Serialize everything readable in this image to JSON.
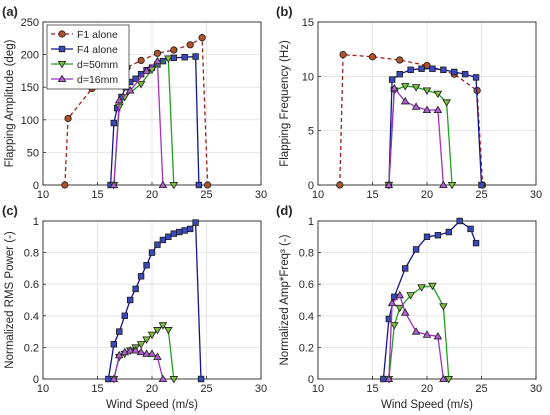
{
  "chart_data": [
    {
      "panel_label": "(a)",
      "type": "line",
      "ylabel": "Flapping Amplitude (deg)",
      "xlabel": "",
      "xlim": [
        10,
        30
      ],
      "ylim": [
        0,
        250
      ],
      "xticks": [
        10,
        15,
        20,
        25,
        30
      ],
      "yticks": [
        0,
        50,
        100,
        150,
        200,
        250
      ],
      "grid": true,
      "legend": {
        "position": "top-left",
        "entries": [
          "F1 alone",
          "F4 alone",
          "d=50mm",
          "d=16mm"
        ]
      },
      "series": [
        {
          "name": "F1 alone",
          "style": "dashed",
          "color": "#a02020",
          "marker": "circle",
          "marker_fill": "#b0522a",
          "x": [
            12,
            12.3,
            14.5,
            16.5,
            17.7,
            19,
            20.5,
            22,
            23.5,
            24.6,
            25.1
          ],
          "y": [
            0,
            102,
            148,
            168,
            180,
            191,
            202,
            207,
            215,
            226,
            0
          ]
        },
        {
          "name": "F4 alone",
          "style": "solid",
          "color": "#14148c",
          "marker": "square",
          "marker_fill": "#3a48b8",
          "x": [
            16.2,
            16.5,
            16.8,
            17.2,
            17.6,
            18,
            18.5,
            19,
            19.5,
            20,
            20.5,
            21,
            22,
            23,
            24,
            24.3
          ],
          "y": [
            0,
            95,
            118,
            135,
            150,
            158,
            163,
            170,
            176,
            180,
            185,
            190,
            195,
            196,
            197,
            0
          ]
        },
        {
          "name": "d=50mm",
          "style": "solid",
          "color": "#20a020",
          "marker": "triangle-down",
          "marker_fill": "#7fbf3f",
          "x": [
            16.5,
            17,
            17.5,
            19,
            20,
            21.5,
            22
          ],
          "y": [
            0,
            120,
            135,
            155,
            177,
            194,
            0
          ]
        },
        {
          "name": "d=16mm",
          "style": "solid",
          "color": "#a030c0",
          "marker": "triangle-up",
          "marker_fill": "#b060d0",
          "x": [
            16.5,
            17,
            18,
            19.5,
            20.5,
            21
          ],
          "y": [
            0,
            130,
            145,
            175,
            190,
            0
          ]
        }
      ]
    },
    {
      "panel_label": "(b)",
      "type": "line",
      "ylabel": "Flapping Frequency (Hz)",
      "xlabel": "",
      "xlim": [
        10,
        30
      ],
      "ylim": [
        0,
        15
      ],
      "xticks": [
        10,
        15,
        20,
        25,
        30
      ],
      "yticks": [
        0,
        5,
        10,
        15
      ],
      "grid": true,
      "series": [
        {
          "name": "F1 alone",
          "style": "dashed",
          "color": "#a02020",
          "marker": "circle",
          "marker_fill": "#b0522a",
          "x": [
            12,
            12.3,
            15,
            17.5,
            20,
            22.5,
            24.6,
            25.1
          ],
          "y": [
            0,
            12,
            11.8,
            11.5,
            11,
            10.2,
            8.7,
            0
          ]
        },
        {
          "name": "F4 alone",
          "style": "solid",
          "color": "#14148c",
          "marker": "square",
          "marker_fill": "#3a48b8",
          "x": [
            16.5,
            16.8,
            17.5,
            18.5,
            19.5,
            20.5,
            21.5,
            22.5,
            23.5,
            24.5,
            25
          ],
          "y": [
            0,
            9.7,
            10.2,
            10.6,
            10.7,
            10.7,
            10.6,
            10.4,
            10.2,
            9.9,
            0
          ]
        },
        {
          "name": "d=50mm",
          "style": "solid",
          "color": "#20a020",
          "marker": "triangle-down",
          "marker_fill": "#7fbf3f",
          "x": [
            16.5,
            17,
            18,
            19,
            20,
            21,
            21.8,
            22.3
          ],
          "y": [
            0,
            8.7,
            9.1,
            9.0,
            8.7,
            8.4,
            7.6,
            0
          ]
        },
        {
          "name": "d=16mm",
          "style": "solid",
          "color": "#a030c0",
          "marker": "triangle-up",
          "marker_fill": "#b060d0",
          "x": [
            16.5,
            17,
            18,
            19,
            20,
            21,
            21.5
          ],
          "y": [
            0,
            8.9,
            7.7,
            7.2,
            6.9,
            6.9,
            0
          ]
        }
      ]
    },
    {
      "panel_label": "(c)",
      "type": "line",
      "ylabel": "Normalized RMS Power (-)",
      "xlabel": "Wind Speed (m/s)",
      "xlim": [
        10,
        30
      ],
      "ylim": [
        0,
        1
      ],
      "xticks": [
        10,
        15,
        20,
        25,
        30
      ],
      "yticks": [
        0,
        0.2,
        0.4,
        0.6,
        0.8,
        1
      ],
      "grid": true,
      "series": [
        {
          "name": "F4 alone",
          "style": "solid",
          "color": "#14148c",
          "marker": "square",
          "marker_fill": "#3a48b8",
          "x": [
            16,
            16.5,
            17,
            17.5,
            18,
            18.5,
            19,
            19.5,
            20,
            20.5,
            21,
            21.5,
            22,
            22.5,
            23,
            23.5,
            24,
            24.5
          ],
          "y": [
            0,
            0.22,
            0.3,
            0.4,
            0.5,
            0.57,
            0.65,
            0.72,
            0.8,
            0.85,
            0.88,
            0.9,
            0.92,
            0.93,
            0.94,
            0.95,
            0.99,
            0
          ]
        },
        {
          "name": "d=50mm",
          "style": "solid",
          "color": "#20a020",
          "marker": "triangle-down",
          "marker_fill": "#7fbf3f",
          "x": [
            16.5,
            17,
            17.5,
            18,
            18.5,
            19,
            19.5,
            20,
            20.5,
            21,
            21.5,
            22
          ],
          "y": [
            0,
            0.14,
            0.16,
            0.18,
            0.2,
            0.22,
            0.25,
            0.28,
            0.31,
            0.34,
            0.31,
            0
          ]
        },
        {
          "name": "d=16mm",
          "style": "solid",
          "color": "#a030c0",
          "marker": "triangle-up",
          "marker_fill": "#b060d0",
          "x": [
            16.5,
            17,
            17.5,
            18,
            18.5,
            19,
            19.5,
            20,
            20.5,
            21
          ],
          "y": [
            0,
            0.15,
            0.17,
            0.18,
            0.18,
            0.17,
            0.16,
            0.16,
            0.14,
            0
          ]
        }
      ]
    },
    {
      "panel_label": "(d)",
      "type": "line",
      "ylabel": "Normalized Amp*Freq³ (-)",
      "xlabel": "Wind Speed (m/s)",
      "xlim": [
        10,
        30
      ],
      "ylim": [
        0,
        1
      ],
      "xticks": [
        10,
        15,
        20,
        25,
        30
      ],
      "yticks": [
        0,
        0.2,
        0.4,
        0.6,
        0.8,
        1
      ],
      "grid": true,
      "series": [
        {
          "name": "F4 alone",
          "style": "solid",
          "color": "#14148c",
          "marker": "square",
          "marker_fill": "#3a48b8",
          "x": [
            16,
            16.5,
            17,
            18,
            19,
            20,
            21,
            22,
            23,
            24,
            24.5
          ],
          "y": [
            0,
            0.38,
            0.52,
            0.7,
            0.82,
            0.9,
            0.91,
            0.93,
            1.0,
            0.95,
            0.86
          ]
        },
        {
          "name": "d=50mm",
          "style": "solid",
          "color": "#20a020",
          "marker": "triangle-down",
          "marker_fill": "#7fbf3f",
          "x": [
            16.5,
            17,
            17.5,
            18.5,
            19.5,
            20.5,
            21.5,
            22
          ],
          "y": [
            0,
            0.34,
            0.45,
            0.53,
            0.58,
            0.59,
            0.46,
            0
          ]
        },
        {
          "name": "d=16mm",
          "style": "solid",
          "color": "#a030c0",
          "marker": "triangle-up",
          "marker_fill": "#b060d0",
          "x": [
            16.5,
            16.8,
            17.5,
            18,
            19,
            20,
            21,
            21.5
          ],
          "y": [
            0,
            0.48,
            0.53,
            0.42,
            0.3,
            0.28,
            0.27,
            0
          ]
        }
      ]
    }
  ]
}
